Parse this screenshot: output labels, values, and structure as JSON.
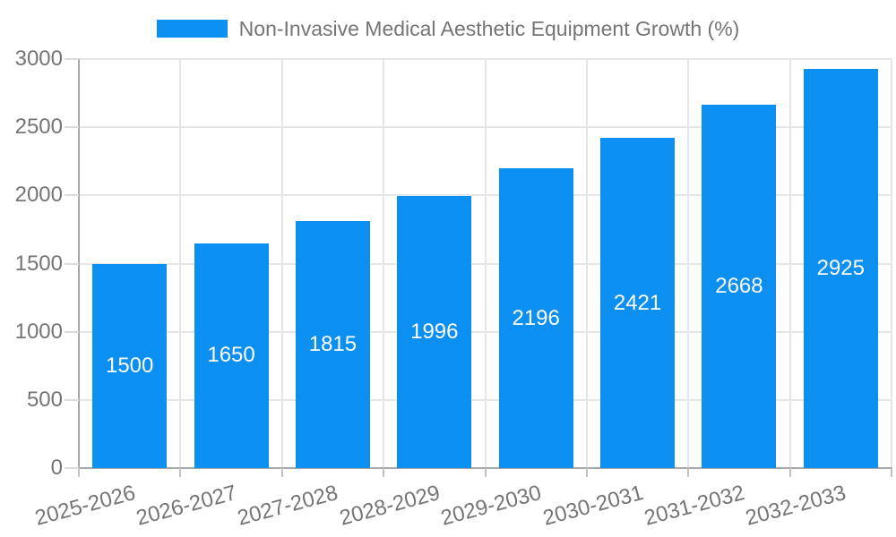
{
  "chart_data": {
    "type": "bar",
    "legend": "Non-Invasive Medical Aesthetic Equipment Growth (%)",
    "legend_position": "top",
    "categories": [
      "2025-2026",
      "2026-2027",
      "2027-2028",
      "2028-2029",
      "2029-2030",
      "2030-2031",
      "2031-2032",
      "2032-2033"
    ],
    "values": [
      1500,
      1650,
      1815,
      1996,
      2196,
      2421,
      2668,
      2925
    ],
    "xlabel": "",
    "ylabel": "",
    "ylim": [
      0,
      3000
    ],
    "yticks": [
      0,
      500,
      1000,
      1500,
      2000,
      2500,
      3000
    ],
    "grid": true,
    "value_labels_inside_bars": true
  },
  "colors": {
    "bar": "#0b8ff0",
    "bar_value_text": "#ffffff",
    "tick_text": "#757575",
    "legend_text": "#757575",
    "gridline": "#e6e6e6",
    "axis_line": "#a8a8a8",
    "y_tick_mark": "#dcdcdc",
    "x_tick_mark": "#c2c2c2",
    "background": "#ffffff"
  }
}
